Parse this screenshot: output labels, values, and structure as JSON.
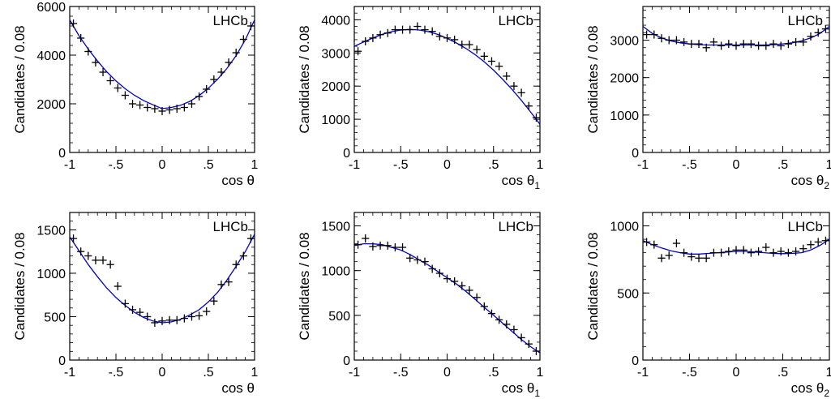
{
  "chart_data": [
    {
      "type": "scatter",
      "tag": "LHCb",
      "xlabel": "cos θ",
      "xlabel_base": "cos",
      "xlabel_symbol": "θ",
      "xlabel_sub": "",
      "ylabel": "Candidates / 0.08",
      "xlim": [
        -1,
        1
      ],
      "ylim": [
        0,
        6000
      ],
      "xticks": [
        -1,
        -0.5,
        0,
        0.5,
        1
      ],
      "yticks": [
        0,
        2000,
        4000,
        6000
      ],
      "series": [
        {
          "x": [
            -0.96,
            -0.88,
            -0.8,
            -0.72,
            -0.64,
            -0.56,
            -0.48,
            -0.4,
            -0.32,
            -0.24,
            -0.16,
            -0.08,
            0.0,
            0.08,
            0.16,
            0.24,
            0.32,
            0.4,
            0.48,
            0.56,
            0.64,
            0.72,
            0.8,
            0.88,
            0.96
          ],
          "y": [
            5300,
            4700,
            4150,
            3700,
            3300,
            2950,
            2650,
            2350,
            2000,
            1950,
            1850,
            1800,
            1700,
            1750,
            1800,
            1850,
            2000,
            2300,
            2600,
            3000,
            3300,
            3700,
            4100,
            4650,
            5200
          ]
        },
        {
          "x": [
            -1,
            -0.9,
            -0.8,
            -0.7,
            -0.6,
            -0.5,
            -0.4,
            -0.3,
            -0.2,
            -0.1,
            0,
            0.1,
            0.2,
            0.3,
            0.4,
            0.5,
            0.6,
            0.7,
            0.8,
            0.9,
            1
          ],
          "y": [
            5450,
            4800,
            4250,
            3760,
            3320,
            2940,
            2620,
            2350,
            2130,
            1960,
            1800,
            1850,
            1940,
            2100,
            2340,
            2640,
            3010,
            3450,
            3980,
            4630,
            5450
          ]
        }
      ]
    },
    {
      "type": "scatter",
      "tag": "LHCb",
      "xlabel": "cos θ1",
      "xlabel_base": "cos",
      "xlabel_symbol": "θ",
      "xlabel_sub": "1",
      "ylabel": "Candidates / 0.08",
      "xlim": [
        -1,
        1
      ],
      "ylim": [
        0,
        4400
      ],
      "xticks": [
        -1,
        -0.5,
        0,
        0.5,
        1
      ],
      "yticks": [
        0,
        1000,
        2000,
        3000,
        4000
      ],
      "series": [
        {
          "x": [
            -0.96,
            -0.88,
            -0.8,
            -0.72,
            -0.64,
            -0.56,
            -0.48,
            -0.4,
            -0.32,
            -0.24,
            -0.16,
            -0.08,
            0.0,
            0.08,
            0.16,
            0.24,
            0.32,
            0.4,
            0.48,
            0.56,
            0.64,
            0.72,
            0.8,
            0.88,
            0.96
          ],
          "y": [
            3050,
            3350,
            3450,
            3550,
            3600,
            3700,
            3700,
            3700,
            3800,
            3700,
            3650,
            3500,
            3450,
            3400,
            3250,
            3250,
            3100,
            2900,
            2750,
            2600,
            2300,
            2000,
            1800,
            1400,
            1050
          ]
        },
        {
          "x": [
            -1,
            -0.9,
            -0.8,
            -0.7,
            -0.6,
            -0.5,
            -0.4,
            -0.3,
            -0.2,
            -0.1,
            0,
            0.1,
            0.2,
            0.3,
            0.4,
            0.5,
            0.6,
            0.7,
            0.8,
            0.9,
            1
          ],
          "y": [
            3200,
            3330,
            3450,
            3560,
            3640,
            3690,
            3710,
            3690,
            3640,
            3560,
            3440,
            3300,
            3140,
            2950,
            2730,
            2480,
            2200,
            1900,
            1570,
            1220,
            850
          ]
        }
      ]
    },
    {
      "type": "scatter",
      "tag": "LHCb",
      "xlabel": "cos θ2",
      "xlabel_base": "cos",
      "xlabel_symbol": "θ",
      "xlabel_sub": "2",
      "ylabel": "Candidates / 0.08",
      "xlim": [
        -1,
        1
      ],
      "ylim": [
        0,
        3900
      ],
      "xticks": [
        -1,
        -0.5,
        0,
        0.5,
        1
      ],
      "yticks": [
        0,
        1000,
        2000,
        3000
      ],
      "series": [
        {
          "x": [
            -0.96,
            -0.88,
            -0.8,
            -0.72,
            -0.64,
            -0.56,
            -0.48,
            -0.4,
            -0.32,
            -0.24,
            -0.16,
            -0.08,
            0.0,
            0.08,
            0.16,
            0.24,
            0.32,
            0.4,
            0.48,
            0.56,
            0.64,
            0.72,
            0.8,
            0.88,
            0.96
          ],
          "y": [
            3150,
            3150,
            3050,
            3000,
            3000,
            2950,
            2900,
            2900,
            2800,
            2950,
            2850,
            2900,
            2850,
            2900,
            2900,
            2850,
            2850,
            2900,
            2850,
            2900,
            2950,
            2950,
            3100,
            3200,
            3300
          ]
        },
        {
          "x": [
            -1,
            -0.9,
            -0.8,
            -0.7,
            -0.6,
            -0.5,
            -0.4,
            -0.3,
            -0.2,
            -0.1,
            0,
            0.1,
            0.2,
            0.3,
            0.4,
            0.5,
            0.6,
            0.7,
            0.8,
            0.9,
            1
          ],
          "y": [
            3370,
            3180,
            3060,
            2980,
            2930,
            2900,
            2880,
            2870,
            2870,
            2870,
            2870,
            2870,
            2870,
            2870,
            2880,
            2900,
            2930,
            2980,
            3060,
            3180,
            3370
          ]
        }
      ]
    },
    {
      "type": "scatter",
      "tag": "LHCb",
      "xlabel": "cos θ",
      "xlabel_base": "cos",
      "xlabel_symbol": "θ",
      "xlabel_sub": "",
      "ylabel": "Candidates / 0.08",
      "xlim": [
        -1,
        1
      ],
      "ylim": [
        0,
        1700
      ],
      "xticks": [
        -1,
        -0.5,
        0,
        0.5,
        1
      ],
      "yticks": [
        0,
        500,
        1000,
        1500
      ],
      "series": [
        {
          "x": [
            -0.96,
            -0.88,
            -0.8,
            -0.72,
            -0.64,
            -0.56,
            -0.48,
            -0.4,
            -0.32,
            -0.24,
            -0.16,
            -0.08,
            0.0,
            0.08,
            0.16,
            0.24,
            0.32,
            0.4,
            0.48,
            0.56,
            0.64,
            0.72,
            0.8,
            0.88,
            0.96
          ],
          "y": [
            1400,
            1250,
            1200,
            1150,
            1150,
            1100,
            850,
            650,
            580,
            550,
            500,
            430,
            450,
            460,
            460,
            480,
            500,
            510,
            560,
            680,
            870,
            900,
            1100,
            1200,
            1400
          ]
        },
        {
          "x": [
            -1,
            -0.9,
            -0.8,
            -0.7,
            -0.6,
            -0.5,
            -0.4,
            -0.3,
            -0.2,
            -0.1,
            0,
            0.1,
            0.2,
            0.3,
            0.4,
            0.5,
            0.6,
            0.7,
            0.8,
            0.9,
            1
          ],
          "y": [
            1420,
            1260,
            1100,
            960,
            830,
            720,
            630,
            550,
            490,
            450,
            430,
            440,
            470,
            520,
            580,
            670,
            780,
            920,
            1080,
            1250,
            1450
          ]
        }
      ]
    },
    {
      "type": "scatter",
      "tag": "LHCb",
      "xlabel": "cos θ1",
      "xlabel_base": "cos",
      "xlabel_symbol": "θ",
      "xlabel_sub": "1",
      "ylabel": "Candidates / 0.08",
      "xlim": [
        -1,
        1
      ],
      "ylim": [
        0,
        1650
      ],
      "xticks": [
        -1,
        -0.5,
        0,
        0.5,
        1
      ],
      "yticks": [
        0,
        500,
        1000,
        1500
      ],
      "series": [
        {
          "x": [
            -0.96,
            -0.88,
            -0.8,
            -0.72,
            -0.64,
            -0.56,
            -0.48,
            -0.4,
            -0.32,
            -0.24,
            -0.16,
            -0.08,
            0.0,
            0.08,
            0.16,
            0.24,
            0.32,
            0.4,
            0.48,
            0.56,
            0.64,
            0.72,
            0.8,
            0.88,
            0.96
          ],
          "y": [
            1290,
            1360,
            1270,
            1280,
            1280,
            1260,
            1260,
            1140,
            1120,
            1100,
            1020,
            970,
            910,
            880,
            830,
            780,
            700,
            600,
            520,
            450,
            400,
            340,
            250,
            180,
            100
          ]
        },
        {
          "x": [
            -1,
            -0.9,
            -0.8,
            -0.7,
            -0.6,
            -0.5,
            -0.4,
            -0.3,
            -0.2,
            -0.1,
            0,
            0.1,
            0.2,
            0.3,
            0.4,
            0.5,
            0.6,
            0.7,
            0.8,
            0.9,
            1
          ],
          "y": [
            1280,
            1300,
            1300,
            1290,
            1260,
            1230,
            1180,
            1120,
            1060,
            990,
            920,
            850,
            770,
            680,
            590,
            500,
            410,
            320,
            230,
            150,
            80
          ]
        }
      ]
    },
    {
      "type": "scatter",
      "tag": "LHCb",
      "xlabel": "cos θ2",
      "xlabel_base": "cos",
      "xlabel_symbol": "θ",
      "xlabel_sub": "2",
      "ylabel": "Candidates / 0.08",
      "xlim": [
        -1,
        1
      ],
      "ylim": [
        0,
        1100
      ],
      "xticks": [
        -1,
        -0.5,
        0,
        0.5,
        1
      ],
      "yticks": [
        0,
        500,
        1000
      ],
      "series": [
        {
          "x": [
            -0.96,
            -0.88,
            -0.8,
            -0.72,
            -0.64,
            -0.56,
            -0.48,
            -0.4,
            -0.32,
            -0.24,
            -0.16,
            -0.08,
            0.0,
            0.08,
            0.16,
            0.24,
            0.32,
            0.4,
            0.48,
            0.56,
            0.64,
            0.72,
            0.8,
            0.88,
            0.96
          ],
          "y": [
            880,
            860,
            760,
            780,
            870,
            800,
            770,
            760,
            760,
            800,
            800,
            810,
            820,
            820,
            800,
            810,
            840,
            800,
            810,
            800,
            810,
            830,
            860,
            880,
            890
          ]
        },
        {
          "x": [
            -1,
            -0.9,
            -0.8,
            -0.7,
            -0.6,
            -0.5,
            -0.4,
            -0.3,
            -0.2,
            -0.1,
            0,
            0.1,
            0.2,
            0.3,
            0.4,
            0.5,
            0.6,
            0.7,
            0.8,
            0.9,
            1
          ],
          "y": [
            890,
            860,
            835,
            815,
            800,
            790,
            790,
            795,
            800,
            805,
            810,
            810,
            805,
            800,
            795,
            793,
            795,
            800,
            820,
            855,
            900
          ]
        }
      ]
    }
  ]
}
